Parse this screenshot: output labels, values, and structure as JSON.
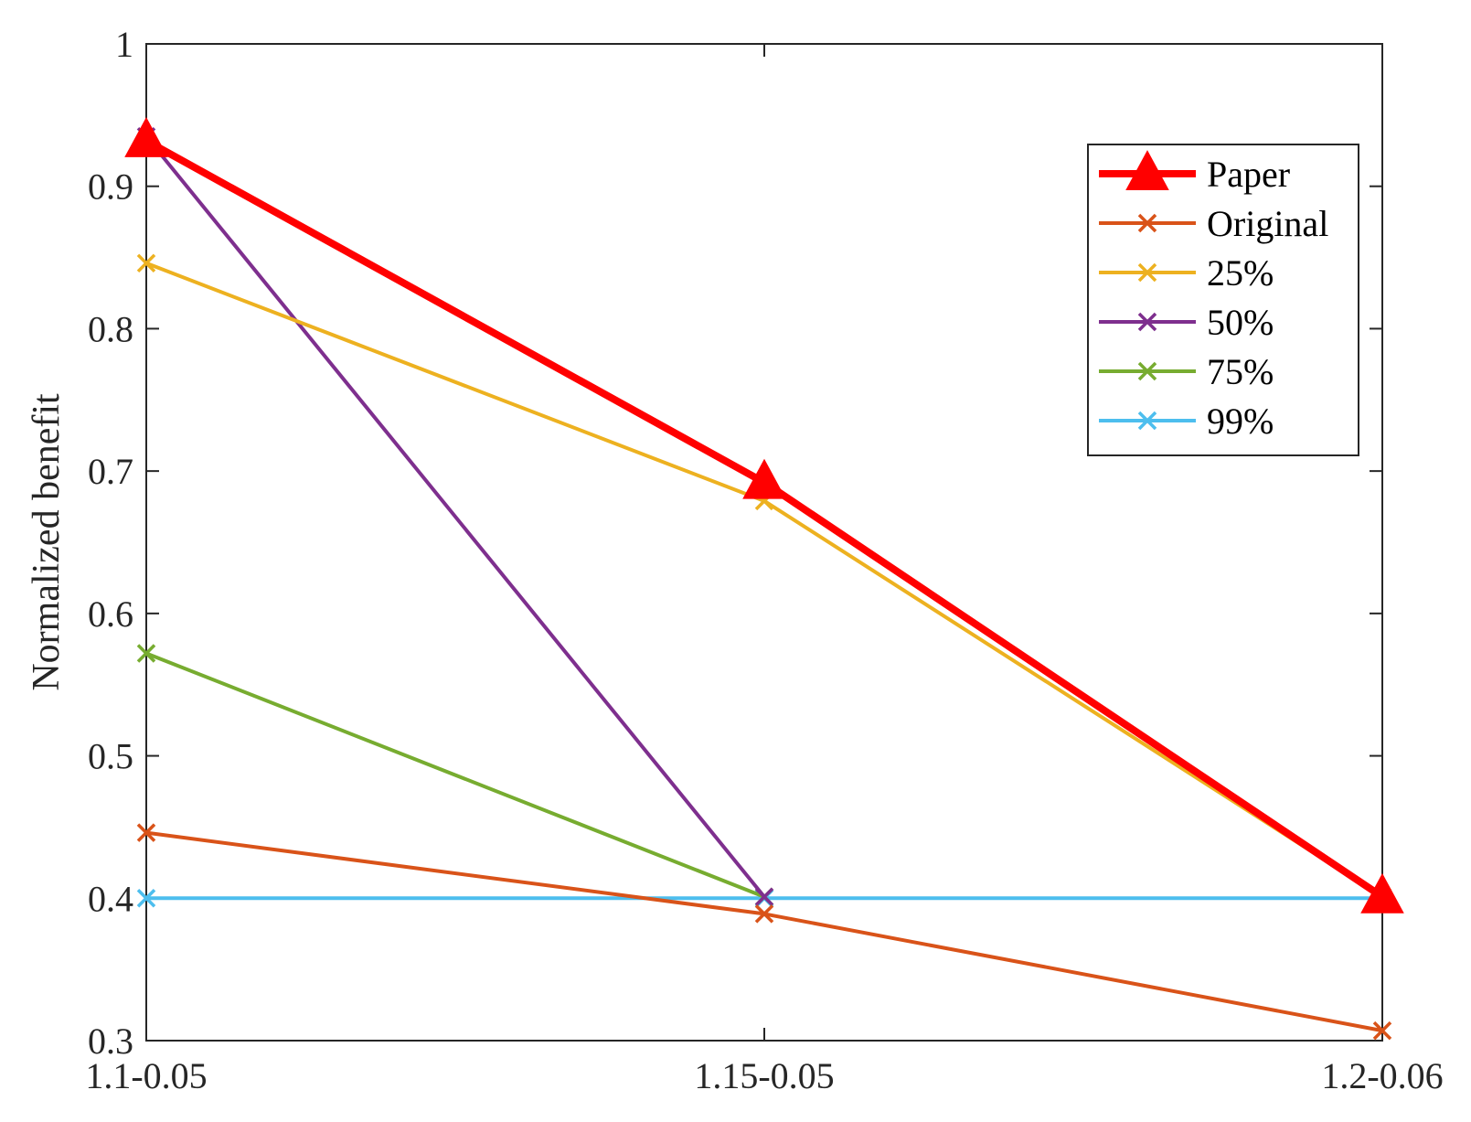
{
  "chart_data": {
    "type": "line",
    "categories": [
      "1.1-0.05",
      "1.15-0.05",
      "1.2-0.06"
    ],
    "ylabel": "Normalized benefit",
    "xlabel": "",
    "ylim": [
      0.3,
      1.0
    ],
    "yticks": [
      "0.3",
      "0.4",
      "0.5",
      "0.6",
      "0.7",
      "0.8",
      "0.9",
      "1"
    ],
    "grid": false,
    "legend_position": "top-right",
    "series": [
      {
        "name": "Paper",
        "values": [
          0.932,
          0.692,
          0.401
        ],
        "color": "#ff0000",
        "marker": "triangle",
        "bold": true
      },
      {
        "name": "Original",
        "values": [
          0.446,
          0.389,
          0.307
        ],
        "color": "#d95319",
        "marker": "x"
      },
      {
        "name": "25%",
        "values": [
          0.846,
          0.679,
          0.401
        ],
        "color": "#edb120",
        "marker": "x"
      },
      {
        "name": "50%",
        "values": [
          0.935,
          0.401,
          null
        ],
        "color": "#7e2f8e",
        "marker": "x"
      },
      {
        "name": "75%",
        "values": [
          0.572,
          0.401,
          null
        ],
        "color": "#77ac30",
        "marker": "x"
      },
      {
        "name": "99%",
        "values": [
          0.4,
          0.4,
          0.4
        ],
        "color": "#4dbeee",
        "marker": "x"
      }
    ]
  }
}
